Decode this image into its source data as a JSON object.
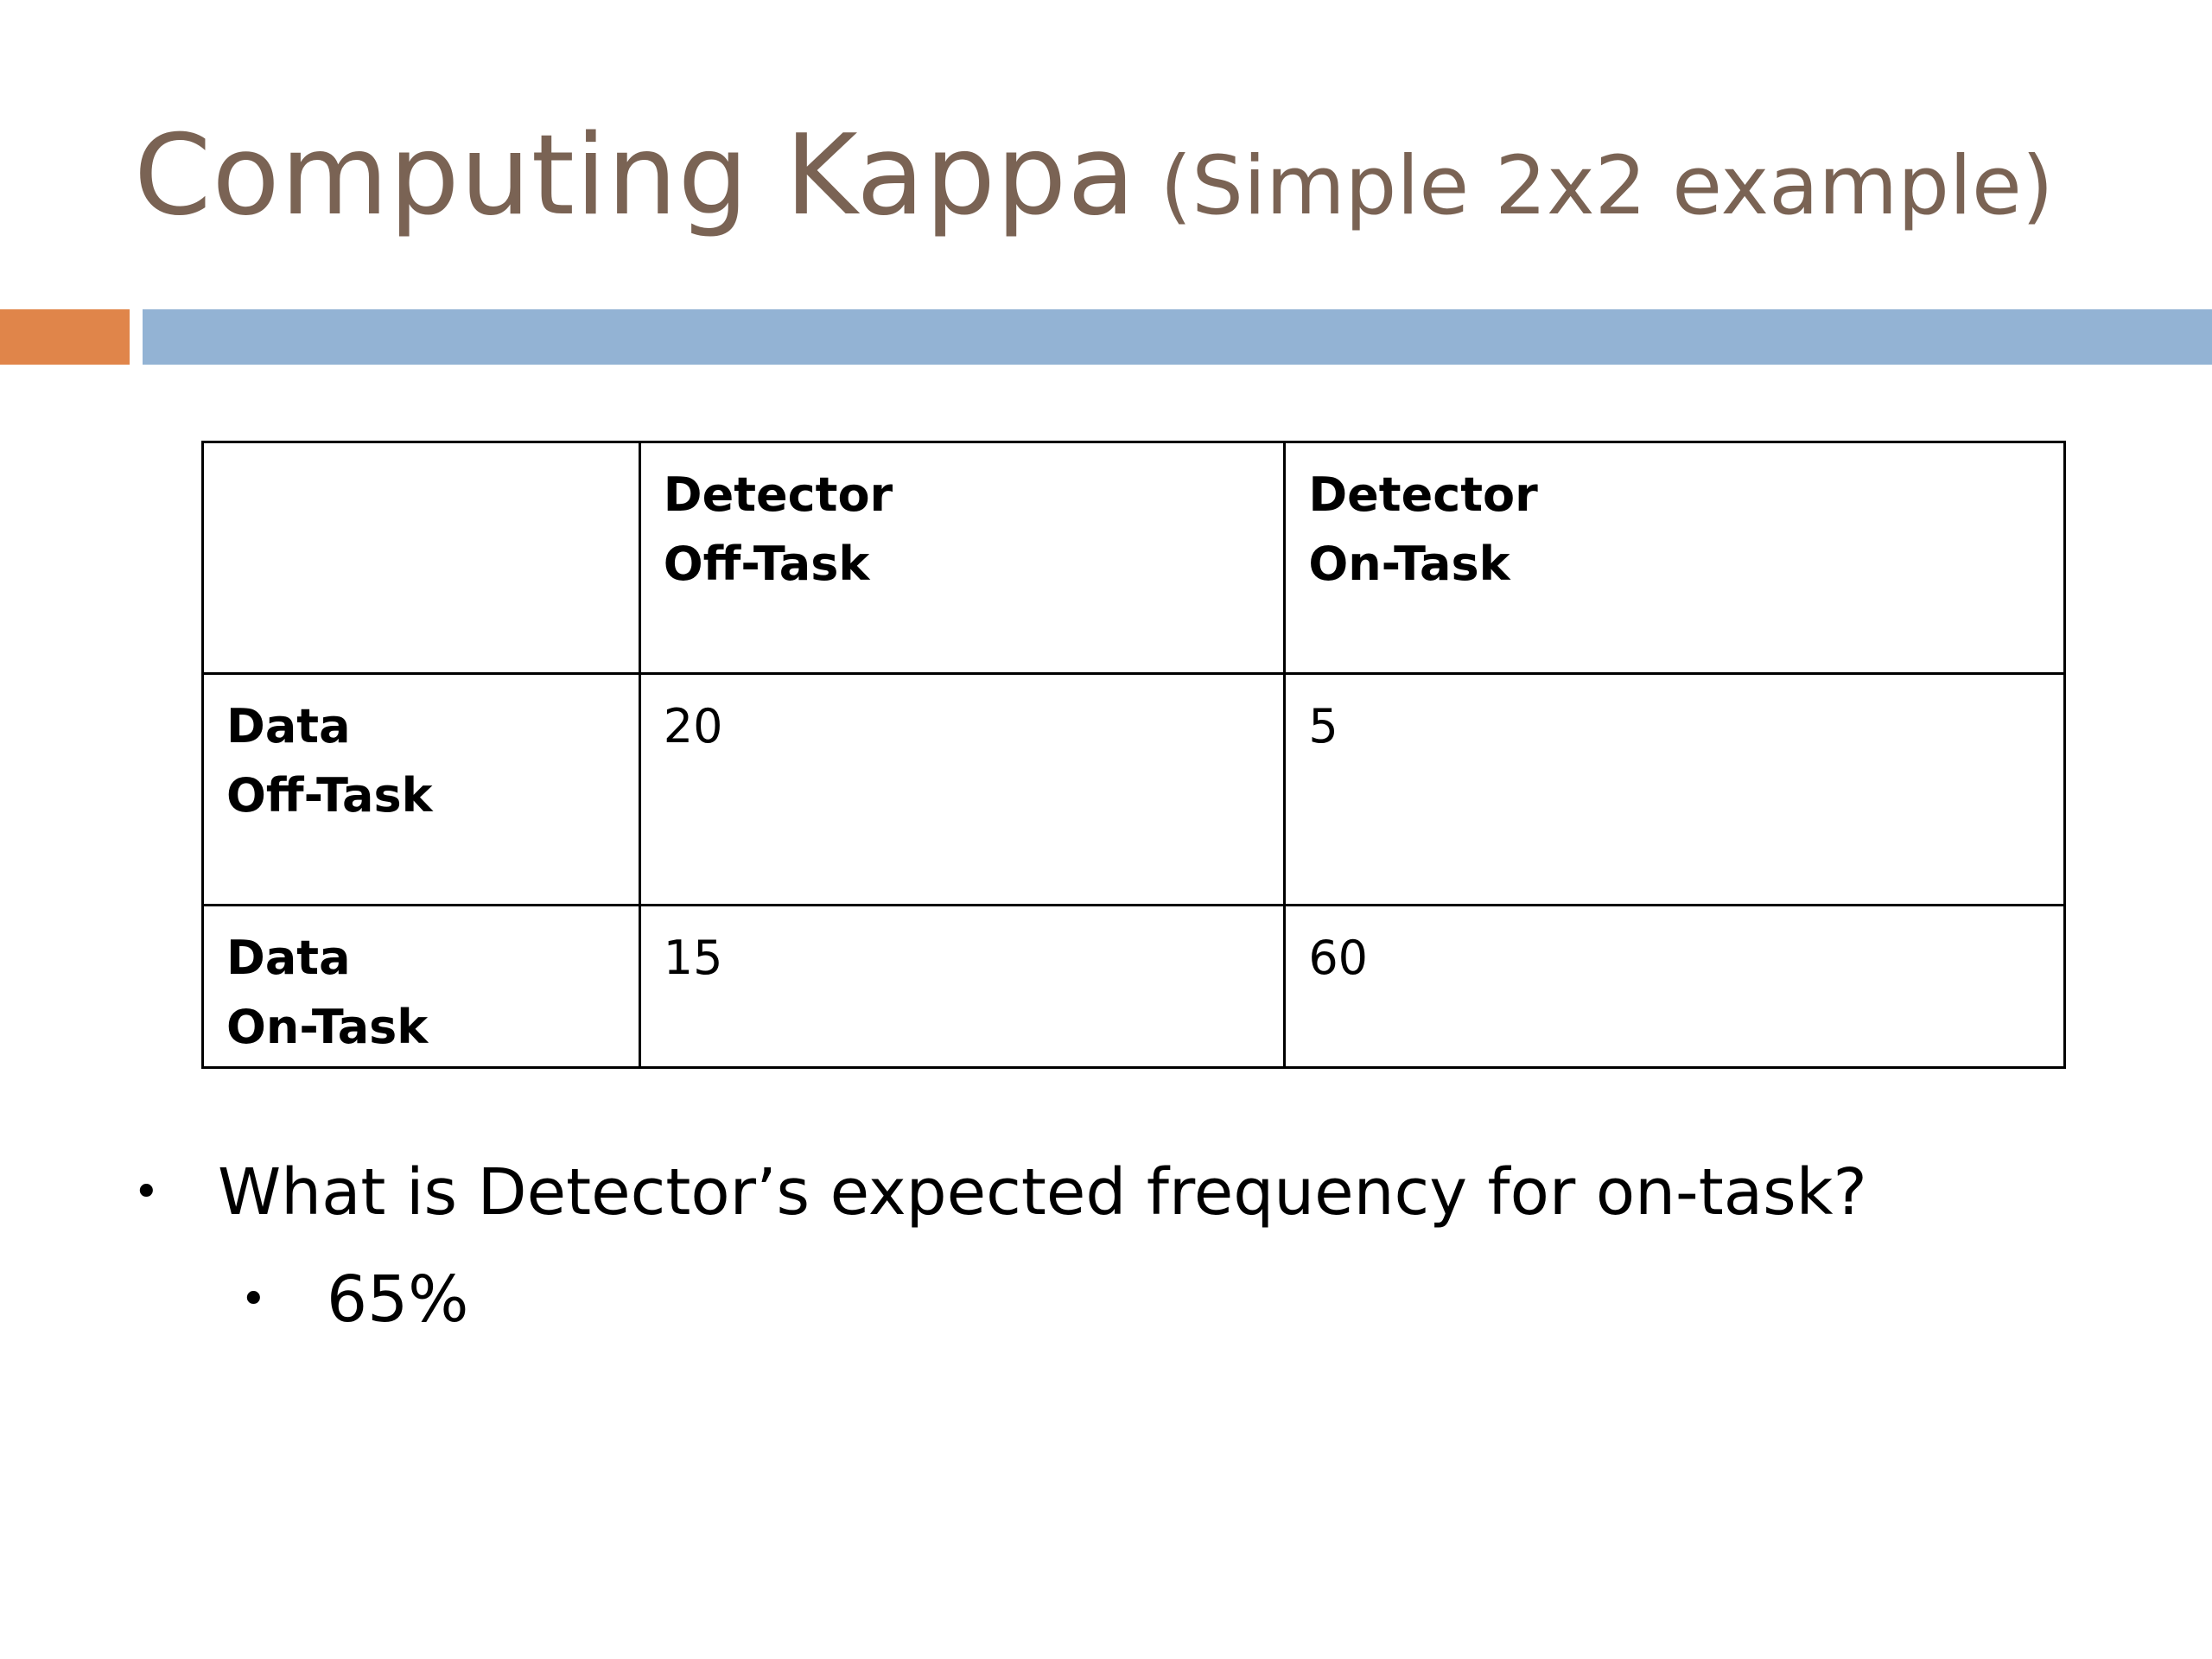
{
  "slide": {
    "title_main": "Computing Kappa",
    "title_sub": "(Simple 2x2 example)",
    "colors": {
      "title": "#7a6354",
      "accent_bar": "#e0854a",
      "rule_bar": "#93b3d4"
    }
  },
  "table": {
    "header": [
      "",
      "Detector\nOff-Task",
      "Detector\nOn-Task"
    ],
    "rows": [
      {
        "label": "Data\nOff-Task",
        "values": [
          "20",
          "5"
        ]
      },
      {
        "label": "Data\nOn-Task",
        "values": [
          "15",
          "60"
        ]
      }
    ]
  },
  "bullets": {
    "glyph": "•",
    "question": "What is Detector’s expected frequency for on-task?",
    "answer": "65%"
  }
}
